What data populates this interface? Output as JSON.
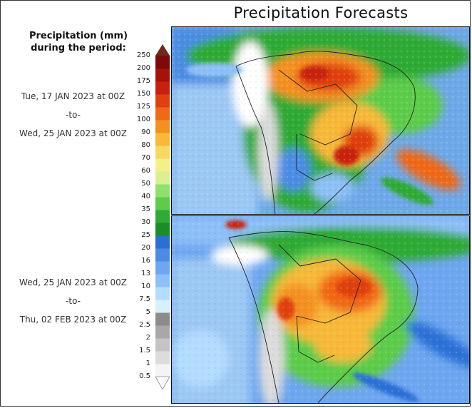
{
  "title": "Precipitation Forecasts",
  "legend_header": [
    "Precipitation (mm)",
    "during the period:"
  ],
  "periods": [
    {
      "start": "Tue, 17 JAN 2023 at 00Z",
      "sep": "-to-",
      "end": "Wed, 25 JAN 2023 at 00Z"
    },
    {
      "start": "Wed, 25 JAN 2023 at 00Z",
      "sep": "-to-",
      "end": "Thu, 02 FEB 2023 at 00Z"
    }
  ],
  "colorbar": {
    "levels": [
      "0.5",
      "1",
      "1.5",
      "2",
      "2.5",
      "5",
      "7.5",
      "10",
      "13",
      "16",
      "20",
      "25",
      "30",
      "35",
      "40",
      "50",
      "60",
      "70",
      "80",
      "90",
      "100",
      "125",
      "150",
      "175",
      "200",
      "250"
    ],
    "colors": [
      "#f4f4f4",
      "#dcdcdc",
      "#c4c4c4",
      "#a8a8a8",
      "#8c8c8c",
      "#d6f0ff",
      "#b4dcff",
      "#8ec0f8",
      "#6ea6f0",
      "#4c8ce4",
      "#2a6fd6",
      "#1a8c2a",
      "#2faa36",
      "#5ccc4a",
      "#90e070",
      "#d8f090",
      "#f4f088",
      "#f8d860",
      "#f8b838",
      "#f49020",
      "#f06818",
      "#e04010",
      "#c82010",
      "#a81008",
      "#800808"
    ]
  }
}
